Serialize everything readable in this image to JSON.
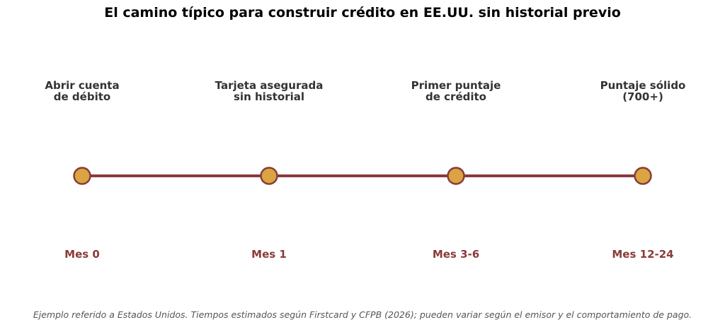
{
  "title": "El camino típico para construir crédito en EE.UU. sin historial previo",
  "colors": {
    "line": "#8b3a3a",
    "node_fill": "#d9a441",
    "node_stroke": "#8b3a3a",
    "step_text": "#333333",
    "time_text": "#8b3a3a"
  },
  "steps": [
    {
      "label": "Abrir cuenta\nde débito",
      "time": "Mes 0"
    },
    {
      "label": "Tarjeta asegurada\nsin historial",
      "time": "Mes 1"
    },
    {
      "label": "Primer puntaje\nde crédito",
      "time": "Mes 3-6"
    },
    {
      "label": "Puntaje sólido\n(700+)",
      "time": "Mes 12-24"
    }
  ],
  "footnote": "Ejemplo referido a Estados Unidos. Tiempos estimados según Firstcard y CFPB (2026); pueden variar según el emisor y el comportamiento de pago."
}
